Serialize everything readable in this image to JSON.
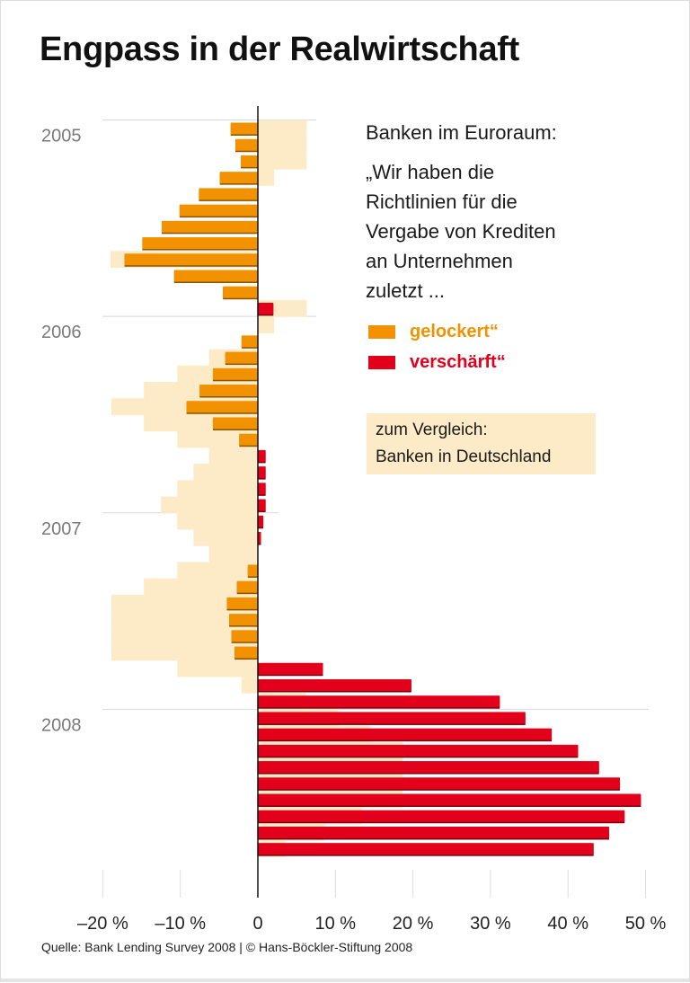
{
  "title": "Engpass in der Realwirtschaft",
  "side_text": {
    "heading": "Banken im Euroraum:",
    "quote_lines": [
      "„Wir haben die",
      "Richtlinien für die",
      "Vergabe von Krediten",
      "an Unternehmen",
      "zuletzt ..."
    ]
  },
  "legend": [
    {
      "label": "gelockert“",
      "color": "#f39200"
    },
    {
      "label": "verschärft“",
      "color": "#e2001a"
    }
  ],
  "comparison_box": {
    "line1": "zum Vergleich:",
    "line2": "Banken in Deutschland",
    "color": "#fdebc8"
  },
  "source": "Quelle: Bank Lending Survey 2008 | © Hans-Böckler-Stiftung 2008",
  "chart_data": {
    "type": "bar",
    "orientation": "horizontal",
    "title": "Engpass in der Realwirtschaft",
    "year_labels": [
      "2005",
      "2006",
      "2007",
      "2008"
    ],
    "rows_per_year": 12,
    "xlim": [
      -20,
      50
    ],
    "x_ticks": [
      -20,
      -10,
      0,
      10,
      20,
      30,
      40,
      50
    ],
    "x_tick_labels": [
      "–20 %",
      "–10 %",
      "0",
      "10 %",
      "20 %",
      "30 %",
      "40 %",
      "50 %"
    ],
    "series": [
      {
        "name": "Banken im Euroraum",
        "colors": {
          "negative": "#f39200",
          "positive": "#e2001a"
        },
        "values": [
          -3.5,
          -2.9,
          -2.2,
          -4.9,
          -7.6,
          -10.1,
          -12.4,
          -14.9,
          -17.2,
          -10.8,
          -4.5,
          2.0,
          0,
          -2.1,
          -4.2,
          -5.8,
          -7.5,
          -9.2,
          -5.8,
          -2.4,
          1.0,
          1.0,
          1.0,
          1.0,
          0.7,
          0.4,
          0,
          -1.3,
          -2.7,
          -4.0,
          -3.7,
          -3.4,
          -3.0,
          8.4,
          19.8,
          31.2,
          34.5,
          37.9,
          41.3,
          44.0,
          46.7,
          49.4,
          47.3,
          45.3,
          43.3
        ]
      },
      {
        "name": "Banken in Deutschland",
        "color": "#fdebc8",
        "values": [
          6.3,
          6.3,
          6.3,
          2.1,
          0,
          0,
          0,
          0,
          -19,
          0,
          0,
          6.3,
          2.1,
          0,
          -6.3,
          -10.4,
          -14.7,
          -18.9,
          -14.7,
          -10.4,
          -6.3,
          -8.3,
          -10.4,
          -12.5,
          -10.4,
          -8.3,
          -6.3,
          -10.4,
          -14.7,
          -18.9,
          -18.9,
          -18.9,
          -18.9,
          -10.4,
          -2.1,
          6.2,
          10.4,
          14.5,
          18.7,
          18.7,
          18.7,
          18.7,
          13.4,
          8.6,
          3.6
        ]
      }
    ]
  }
}
